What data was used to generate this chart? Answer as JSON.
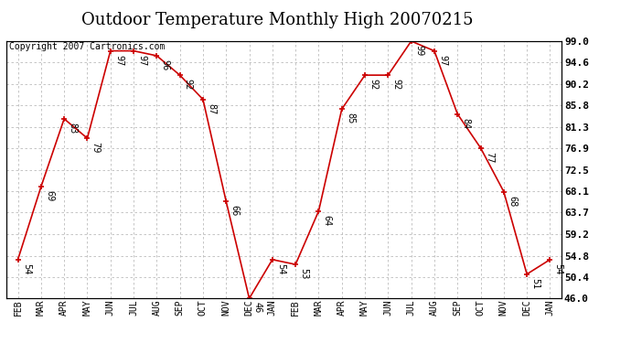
{
  "title": "Outdoor Temperature Monthly High 20070215",
  "copyright_text": "Copyright 2007 Cartronics.com",
  "months": [
    "FEB",
    "MAR",
    "APR",
    "MAY",
    "JUN",
    "JUL",
    "AUG",
    "SEP",
    "OCT",
    "NOV",
    "DEC",
    "JAN",
    "FEB",
    "MAR",
    "APR",
    "MAY",
    "JUN",
    "JUL",
    "AUG",
    "SEP",
    "OCT",
    "NOV",
    "DEC",
    "JAN"
  ],
  "values": [
    54,
    69,
    83,
    79,
    97,
    97,
    96,
    92,
    87,
    66,
    46,
    54,
    53,
    64,
    85,
    92,
    92,
    99,
    97,
    84,
    77,
    68,
    51,
    54
  ],
  "ylim_min": 46.0,
  "ylim_max": 99.0,
  "yticks": [
    46.0,
    50.4,
    54.8,
    59.2,
    63.7,
    68.1,
    72.5,
    76.9,
    81.3,
    85.8,
    90.2,
    94.6,
    99.0
  ],
  "ytick_labels": [
    "46.0",
    "50.4",
    "54.8",
    "59.2",
    "63.7",
    "68.1",
    "72.5",
    "76.9",
    "81.3",
    "85.8",
    "90.2",
    "94.6",
    "99.0"
  ],
  "line_color": "#cc0000",
  "marker_color": "#cc0000",
  "bg_color": "#ffffff",
  "plot_bg_color": "#ffffff",
  "grid_color": "#bbbbbb",
  "title_fontsize": 13,
  "copyright_fontsize": 7,
  "tick_label_fontsize": 7,
  "annot_fontsize": 7
}
